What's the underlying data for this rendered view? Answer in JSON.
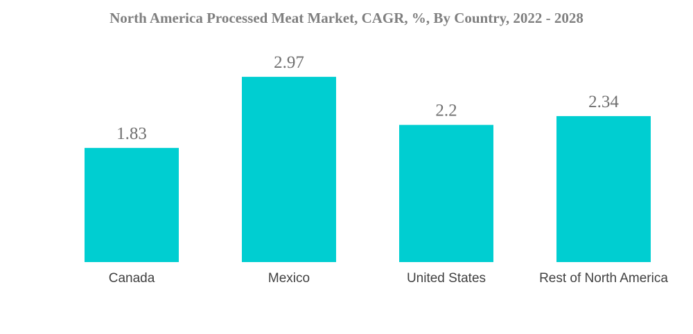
{
  "chart_data": {
    "type": "bar",
    "title": "North America Processed Meat Market, CAGR, %, By Country, 2022 - 2028",
    "categories": [
      "Canada",
      "Mexico",
      "United States",
      "Rest of North America"
    ],
    "values": [
      1.83,
      2.97,
      2.2,
      2.34
    ],
    "value_labels": [
      "1.83",
      "2.97",
      "2.2",
      "2.34"
    ],
    "xlabel": "",
    "ylabel": "",
    "ylim": [
      0,
      3.2
    ],
    "grid": false,
    "legend": "none",
    "bar_color": "#00ced1"
  }
}
